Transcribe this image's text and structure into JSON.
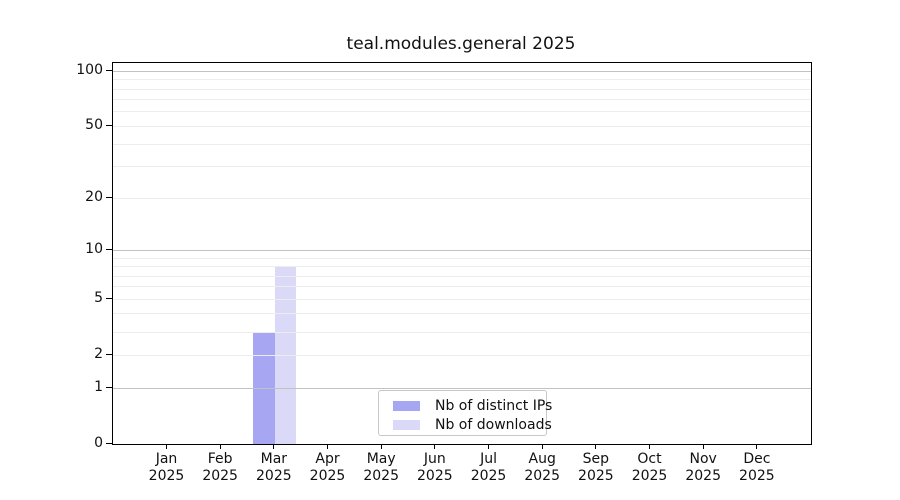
{
  "figure": {
    "title": "teal.modules.general 2025"
  },
  "chart_data": {
    "type": "bar",
    "title": "teal.modules.general 2025",
    "categories": [
      "Jan",
      "Feb",
      "Mar",
      "Apr",
      "May",
      "Jun",
      "Jul",
      "Aug",
      "Sep",
      "Oct",
      "Nov",
      "Dec"
    ],
    "category_year": "2025",
    "series": [
      {
        "name": "Nb of distinct IPs",
        "color": "#a6a6f2",
        "values": [
          0,
          0,
          3,
          0,
          0,
          0,
          0,
          0,
          0,
          0,
          0,
          0
        ]
      },
      {
        "name": "Nb of downloads",
        "color": "#dadaf8",
        "values": [
          0,
          0,
          8,
          0,
          0,
          0,
          0,
          0,
          0,
          0,
          0,
          0
        ]
      }
    ],
    "xlabel": "",
    "ylabel": "",
    "y_scale": "log1p",
    "y_tick_values": [
      0,
      1,
      2,
      5,
      10,
      20,
      50,
      100
    ],
    "y_tick_labels": [
      "0",
      "1",
      "2",
      "5",
      "10",
      "20",
      "50",
      "100"
    ],
    "y_major_grid_values": [
      1,
      10,
      100
    ],
    "y_minor_grid_values": [
      2,
      3,
      4,
      5,
      6,
      7,
      8,
      9,
      20,
      30,
      40,
      50,
      60,
      70,
      80,
      90
    ],
    "ylim": [
      0,
      110
    ],
    "grid": true,
    "legend": {
      "position": "lower center",
      "entries": [
        "Nb of distinct IPs",
        "Nb of downloads"
      ]
    },
    "colors": {
      "grid_major": "#c2c2c2",
      "grid_minor": "#ededed",
      "spine": "#000000",
      "text": "#111111",
      "background": "#ffffff"
    }
  }
}
